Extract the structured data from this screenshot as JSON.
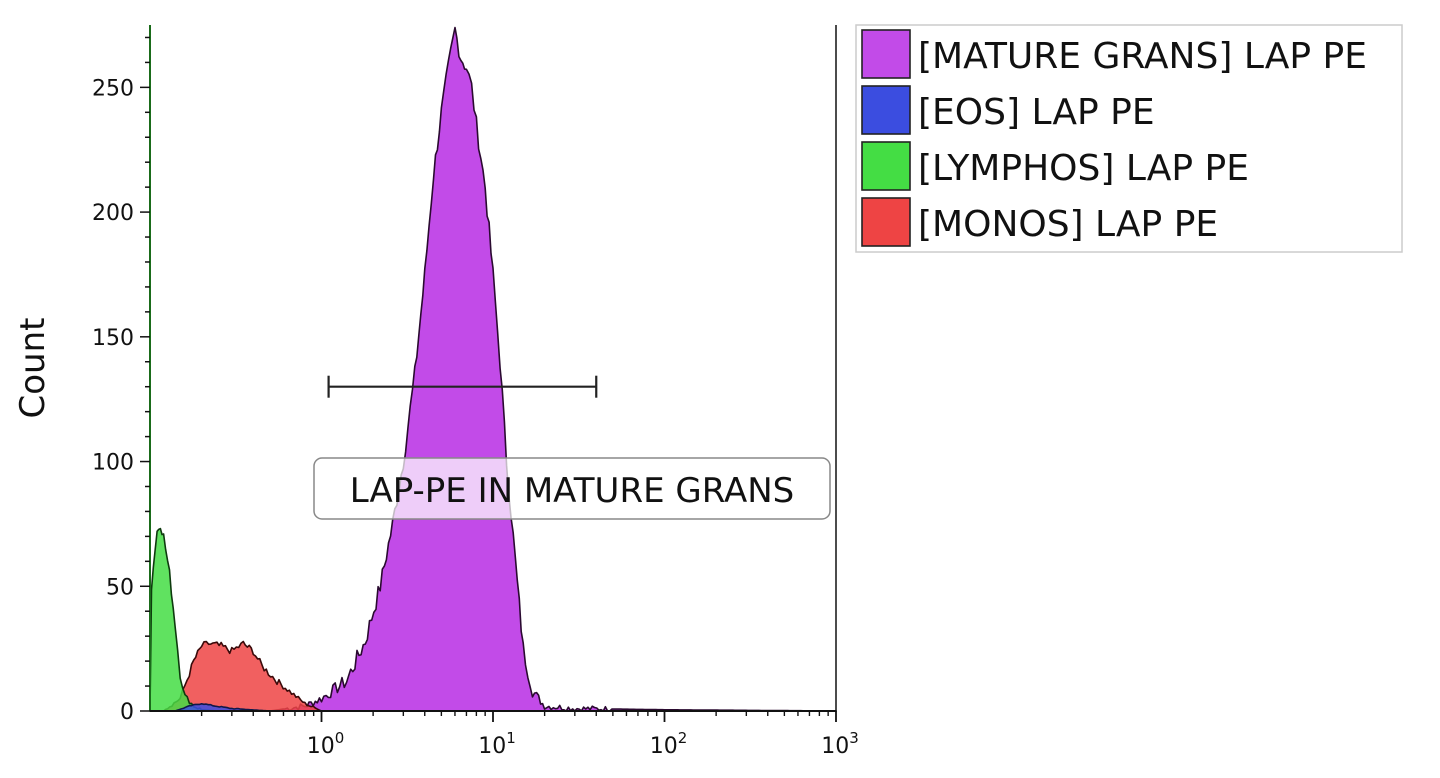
{
  "chart_data": {
    "type": "area",
    "xlabel": "",
    "ylabel": "Count",
    "x_scale": "log",
    "xlim": [
      0.1,
      1000
    ],
    "ylim": [
      0,
      275
    ],
    "x_ticks": [
      {
        "value": 1,
        "base": "10",
        "exp": "0"
      },
      {
        "value": 10,
        "base": "10",
        "exp": "1"
      },
      {
        "value": 100,
        "base": "10",
        "exp": "2"
      },
      {
        "value": 1000,
        "base": "10",
        "exp": "3"
      }
    ],
    "y_ticks": [
      {
        "value": 0,
        "label": "0"
      },
      {
        "value": 50,
        "label": "50"
      },
      {
        "value": 100,
        "label": "100"
      },
      {
        "value": 150,
        "label": "150"
      },
      {
        "value": 200,
        "label": "200"
      },
      {
        "value": 250,
        "label": "250"
      }
    ],
    "series": [
      {
        "name": "[MATURE GRANS] LAP PE",
        "color": "#c24be8",
        "points": [
          [
            0.5,
            0
          ],
          [
            0.8,
            2
          ],
          [
            1,
            5
          ],
          [
            1.4,
            12
          ],
          [
            1.8,
            28
          ],
          [
            2.2,
            50
          ],
          [
            2.6,
            75
          ],
          [
            3,
            100
          ],
          [
            3.5,
            135
          ],
          [
            4,
            175
          ],
          [
            4.5,
            215
          ],
          [
            5,
            240
          ],
          [
            5.5,
            258
          ],
          [
            6,
            273
          ],
          [
            6.5,
            262
          ],
          [
            7,
            258
          ],
          [
            7.5,
            250
          ],
          [
            8,
            235
          ],
          [
            9,
            210
          ],
          [
            10,
            175
          ],
          [
            11,
            140
          ],
          [
            12,
            100
          ],
          [
            13.5,
            60
          ],
          [
            15,
            25
          ],
          [
            17,
            8
          ],
          [
            20,
            2
          ],
          [
            30,
            1
          ],
          [
            100,
            0.5
          ],
          [
            1000,
            0
          ]
        ]
      },
      {
        "name": "[EOS] LAP PE",
        "color": "#3b4de0",
        "points": [
          [
            0.1,
            0
          ],
          [
            0.14,
            0
          ],
          [
            0.17,
            2
          ],
          [
            0.2,
            3
          ],
          [
            0.24,
            2
          ],
          [
            0.3,
            1
          ],
          [
            0.5,
            0
          ],
          [
            1000,
            0
          ]
        ]
      },
      {
        "name": "[LYMPHOS] LAP PE",
        "color": "#44dd44",
        "points": [
          [
            0.1,
            0
          ],
          [
            0.102,
            50
          ],
          [
            0.107,
            65
          ],
          [
            0.11,
            72
          ],
          [
            0.115,
            75
          ],
          [
            0.12,
            70
          ],
          [
            0.13,
            55
          ],
          [
            0.14,
            35
          ],
          [
            0.15,
            15
          ],
          [
            0.16,
            6
          ],
          [
            0.18,
            2
          ],
          [
            0.2,
            0.5
          ],
          [
            0.25,
            0
          ],
          [
            1000,
            0
          ]
        ]
      },
      {
        "name": "[MONOS] LAP PE",
        "color": "#ee4444",
        "points": [
          [
            0.12,
            0
          ],
          [
            0.15,
            5
          ],
          [
            0.18,
            20
          ],
          [
            0.2,
            26
          ],
          [
            0.22,
            27
          ],
          [
            0.26,
            26
          ],
          [
            0.3,
            24
          ],
          [
            0.35,
            27
          ],
          [
            0.4,
            24
          ],
          [
            0.45,
            18
          ],
          [
            0.55,
            12
          ],
          [
            0.65,
            8
          ],
          [
            0.8,
            3
          ],
          [
            1,
            0
          ],
          [
            1000,
            0
          ]
        ]
      }
    ],
    "gate": {
      "label": "LAP-PE IN MATURE GRANS",
      "x_start": 1.1,
      "x_end": 40,
      "y": 130
    },
    "legend_position": "top-right"
  }
}
